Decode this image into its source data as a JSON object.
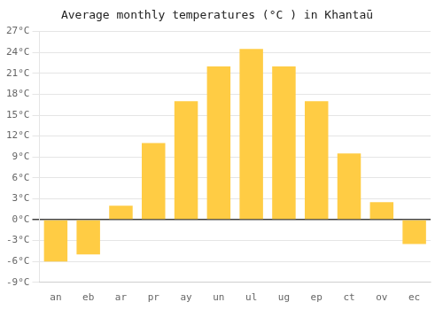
{
  "chart_data": {
    "type": "bar",
    "title": "Average monthly temperatures (°C ) in Khantaū",
    "categories": [
      "an",
      "eb",
      "ar",
      "pr",
      "ay",
      "un",
      "ul",
      "ug",
      "ep",
      "ct",
      "ov",
      "ec"
    ],
    "values": [
      -6.0,
      -5.0,
      2.0,
      11.0,
      17.0,
      22.0,
      24.5,
      22.0,
      17.0,
      9.5,
      2.5,
      -3.5
    ],
    "color": "#FFCC44",
    "ylim": [
      -9,
      27
    ],
    "yticks": [
      {
        "value": -9,
        "label": "-9°C"
      },
      {
        "value": -6,
        "label": "-6°C"
      },
      {
        "value": -3,
        "label": "-3°C"
      },
      {
        "value": 0,
        "label": "0°C"
      },
      {
        "value": 3,
        "label": "3°C"
      },
      {
        "value": 6,
        "label": "6°C"
      },
      {
        "value": 9,
        "label": "9°C"
      },
      {
        "value": 12,
        "label": "12°C"
      },
      {
        "value": 15,
        "label": "15°C"
      },
      {
        "value": 18,
        "label": "18°C"
      },
      {
        "value": 21,
        "label": "21°C"
      },
      {
        "value": 24,
        "label": "24°C"
      },
      {
        "value": 27,
        "label": "27°C"
      }
    ],
    "grid": true
  }
}
